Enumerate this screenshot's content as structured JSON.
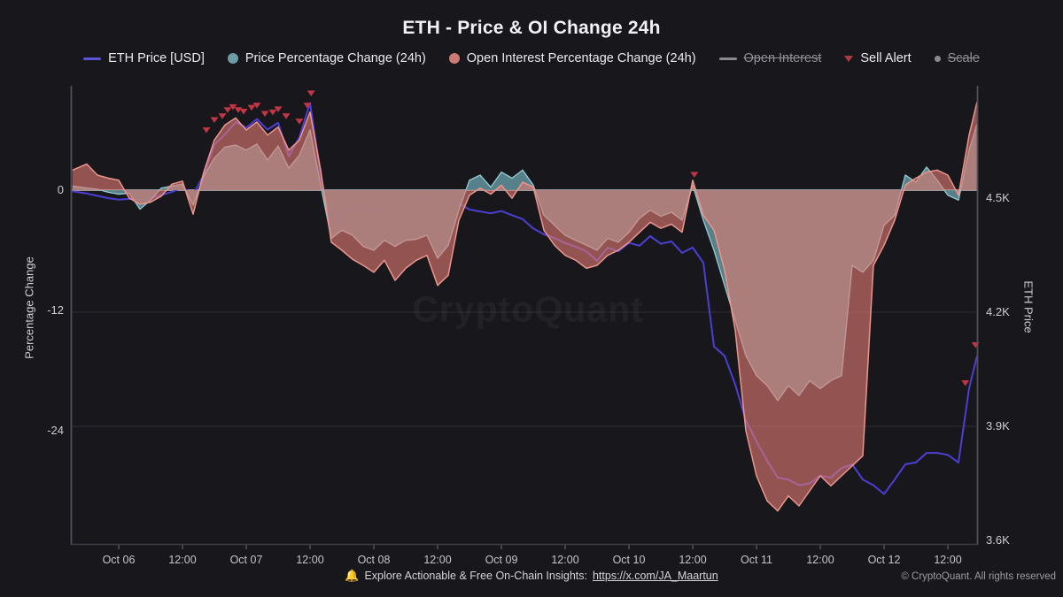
{
  "title": "ETH - Price & OI Change 24h",
  "colors": {
    "background": "#17171c",
    "price_line": "#4c3fd4",
    "price_pct_fill": "#5c8a94",
    "price_pct_stroke": "#8fc6cc",
    "oi_fill": "#e07b73",
    "oi_fill_opacity": 0.62,
    "oi_stroke": "#eb958d",
    "alert": "#c13545",
    "zero_line": "#c6c6ca",
    "grid": "#2c2c33",
    "axis": "#50505a",
    "legend_disabled": "#8f8f96"
  },
  "legend": {
    "items": [
      {
        "key": "eth-price",
        "label": "ETH Price [USD]",
        "marker": "line",
        "color": "#5b54d8",
        "disabled": false
      },
      {
        "key": "price-pct",
        "label": "Price Percentage Change (24h)",
        "marker": "circle",
        "color": "#6d9ba6",
        "disabled": false
      },
      {
        "key": "oi-pct",
        "label": "Open Interest Percentage Change (24h)",
        "marker": "circle",
        "color": "#cd7b76",
        "disabled": false
      },
      {
        "key": "open-interest",
        "label": "Open Interest",
        "marker": "line",
        "color": "#8a8a90",
        "disabled": true
      },
      {
        "key": "sell-alert",
        "label": "Sell Alert",
        "marker": "triangle",
        "color": "#b03a42",
        "disabled": false
      },
      {
        "key": "scale",
        "label": "Scale",
        "marker": "dot",
        "color": "#8a8a90",
        "disabled": true
      }
    ]
  },
  "axes": {
    "left": {
      "title": "Percentage Change",
      "ticks": [
        {
          "label": "0",
          "value": 0
        },
        {
          "label": "-12",
          "value": -12
        },
        {
          "label": "-24",
          "value": -24
        }
      ]
    },
    "right": {
      "title": "ETH Price",
      "ticks": [
        {
          "label": "4.5K",
          "value": 4500
        },
        {
          "label": "4.2K",
          "value": 4200
        },
        {
          "label": "3.9K",
          "value": 3900
        },
        {
          "label": "3.6K",
          "value": 3600
        }
      ]
    },
    "x": {
      "ticks": [
        {
          "label": "Oct 06",
          "hour": 0
        },
        {
          "label": "12:00",
          "hour": 12
        },
        {
          "label": "Oct 07",
          "hour": 24
        },
        {
          "label": "12:00",
          "hour": 36
        },
        {
          "label": "Oct 08",
          "hour": 48
        },
        {
          "label": "12:00",
          "hour": 60
        },
        {
          "label": "Oct 09",
          "hour": 72
        },
        {
          "label": "12:00",
          "hour": 84
        },
        {
          "label": "Oct 10",
          "hour": 96
        },
        {
          "label": "12:00",
          "hour": 108
        },
        {
          "label": "Oct 11",
          "hour": 120
        },
        {
          "label": "12:00",
          "hour": 132
        },
        {
          "label": "Oct 12",
          "hour": 144
        },
        {
          "label": "12:00",
          "hour": 156
        }
      ]
    }
  },
  "watermark": "CryptoQuant",
  "footer": {
    "bell_icon": "🔔",
    "text": "Explore Actionable & Free On-Chain Insights: ",
    "link": "https://x.com/JA_Maartun",
    "copyright": "© CryptoQuant. All rights reserved"
  },
  "chart_data": {
    "type": "line",
    "x_unit": "hours since Oct 06 00:00",
    "x_range": [
      -8.7,
      161.5
    ],
    "left_axis": {
      "label": "Percentage Change",
      "ticks": [
        0,
        -12,
        -24
      ],
      "approx_range": [
        10.5,
        -35
      ]
    },
    "right_axis": {
      "label": "ETH Price",
      "ticks": [
        4500,
        4200,
        3900,
        3600
      ],
      "approx_range": [
        4775,
        3595
      ]
    },
    "x": [
      -8.7,
      -6,
      -4,
      -2,
      0,
      2,
      4,
      6,
      8,
      10,
      12,
      14,
      16,
      18,
      20,
      22,
      24,
      26,
      28,
      30,
      32,
      34,
      36,
      38,
      40,
      42,
      44,
      46,
      48,
      50,
      52,
      54,
      56,
      58,
      60,
      62,
      64,
      66,
      68,
      70,
      72,
      74,
      76,
      78,
      80,
      82,
      84,
      86,
      88,
      90,
      92,
      94,
      96,
      98,
      100,
      102,
      104,
      106,
      108,
      110,
      112,
      114,
      116,
      118,
      120,
      122,
      124,
      126,
      128,
      130,
      132,
      134,
      136,
      138,
      140,
      142,
      144,
      146,
      148,
      150,
      152,
      154,
      156,
      158,
      160,
      161.5
    ],
    "series": [
      {
        "name": "ETH Price [USD]",
        "axis": "price_usd",
        "values": [
          4518,
          4512,
          4506,
          4500,
          4496,
          4498,
          4502,
          4500,
          4508,
          4516,
          4528,
          4510,
          4560,
          4640,
          4668,
          4700,
          4685,
          4708,
          4680,
          4698,
          4610,
          4660,
          4750,
          4560,
          4430,
          4470,
          4480,
          4465,
          4468,
          4455,
          4468,
          4472,
          4488,
          4498,
          4492,
          4482,
          4486,
          4470,
          4465,
          4460,
          4466,
          4455,
          4445,
          4420,
          4405,
          4395,
          4382,
          4372,
          4360,
          4335,
          4370,
          4360,
          4382,
          4375,
          4400,
          4380,
          4386,
          4356,
          4370,
          4330,
          4110,
          4085,
          4010,
          3915,
          3860,
          3810,
          3765,
          3760,
          3745,
          3750,
          3770,
          3765,
          3790,
          3800,
          3760,
          3745,
          3722,
          3760,
          3800,
          3805,
          3830,
          3830,
          3825,
          3805,
          4000,
          4085
        ]
      },
      {
        "name": "Price Percentage Change (24h)",
        "axis": "percent",
        "values": [
          0.4,
          0.2,
          0.1,
          -0.2,
          -0.4,
          -0.3,
          -1.9,
          -1.0,
          0.2,
          0.4,
          0.6,
          -1.5,
          1.4,
          3.2,
          4.3,
          4.5,
          4.0,
          4.6,
          3.0,
          4.4,
          2.2,
          3.5,
          6.0,
          0.5,
          -4.8,
          -4.0,
          -4.5,
          -5.6,
          -6.0,
          -5.0,
          -5.6,
          -5.0,
          -4.9,
          -4.5,
          -6.8,
          -5.5,
          -2.0,
          1.0,
          1.5,
          0.3,
          1.8,
          1.2,
          2.0,
          0.5,
          -2.5,
          -3.5,
          -4.5,
          -5.0,
          -5.5,
          -6.0,
          -4.8,
          -5.2,
          -4.2,
          -2.8,
          -2.0,
          -2.6,
          -2.2,
          -3.0,
          0.5,
          -3.0,
          -6.0,
          -9.5,
          -13.0,
          -16.5,
          -18.5,
          -19.5,
          -21.0,
          -19.5,
          -20.5,
          -19.0,
          -19.8,
          -19.0,
          -18.5,
          -7.5,
          -8.2,
          -7.0,
          -3.5,
          -2.5,
          1.5,
          0.8,
          2.3,
          1.0,
          -0.5,
          -1.0,
          4.0,
          6.6
        ]
      },
      {
        "name": "Open Interest Percentage Change (24h)",
        "axis": "percent",
        "values": [
          2.0,
          2.6,
          1.5,
          1.2,
          1.0,
          -0.8,
          -1.4,
          -1.2,
          -0.6,
          0.6,
          0.9,
          -2.4,
          1.8,
          5.0,
          6.5,
          7.2,
          6.0,
          6.8,
          5.5,
          6.3,
          4.0,
          5.0,
          7.8,
          2.0,
          -5.2,
          -6.0,
          -6.9,
          -7.5,
          -8.2,
          -7.0,
          -9.0,
          -7.8,
          -7.0,
          -6.5,
          -9.5,
          -8.5,
          -3.0,
          -0.5,
          0.2,
          -0.4,
          0.5,
          -0.8,
          0.8,
          0.3,
          -4.0,
          -5.5,
          -6.5,
          -7.0,
          -7.8,
          -7.5,
          -6.5,
          -6.0,
          -5.2,
          -4.2,
          -3.2,
          -3.8,
          -3.4,
          -4.2,
          1.0,
          -2.5,
          -4.0,
          -8.0,
          -14.0,
          -24.0,
          -28.5,
          -31.0,
          -32.0,
          -30.5,
          -31.5,
          -30.0,
          -28.5,
          -29.5,
          -28.5,
          -27.5,
          -26.5,
          -7.5,
          -5.5,
          -3.0,
          0.5,
          1.2,
          1.8,
          2.0,
          1.5,
          -0.5,
          5.5,
          8.8
        ]
      }
    ],
    "sell_alerts": [
      [
        16.5,
        4665
      ],
      [
        18,
        4692
      ],
      [
        19.5,
        4702
      ],
      [
        20.5,
        4718
      ],
      [
        21.5,
        4726
      ],
      [
        22.5,
        4718
      ],
      [
        23.5,
        4714
      ],
      [
        25,
        4724
      ],
      [
        26,
        4730
      ],
      [
        27.5,
        4708
      ],
      [
        29,
        4712
      ],
      [
        30,
        4720
      ],
      [
        31.5,
        4702
      ],
      [
        34,
        4688
      ],
      [
        35.5,
        4730
      ],
      [
        36.2,
        4762
      ],
      [
        108.3,
        4548
      ],
      [
        159.3,
        4000
      ],
      [
        161.2,
        4100
      ]
    ],
    "grid": "horizontal, faint at 4.2K and 3.9K, bright zero line",
    "legend_position": "top"
  }
}
